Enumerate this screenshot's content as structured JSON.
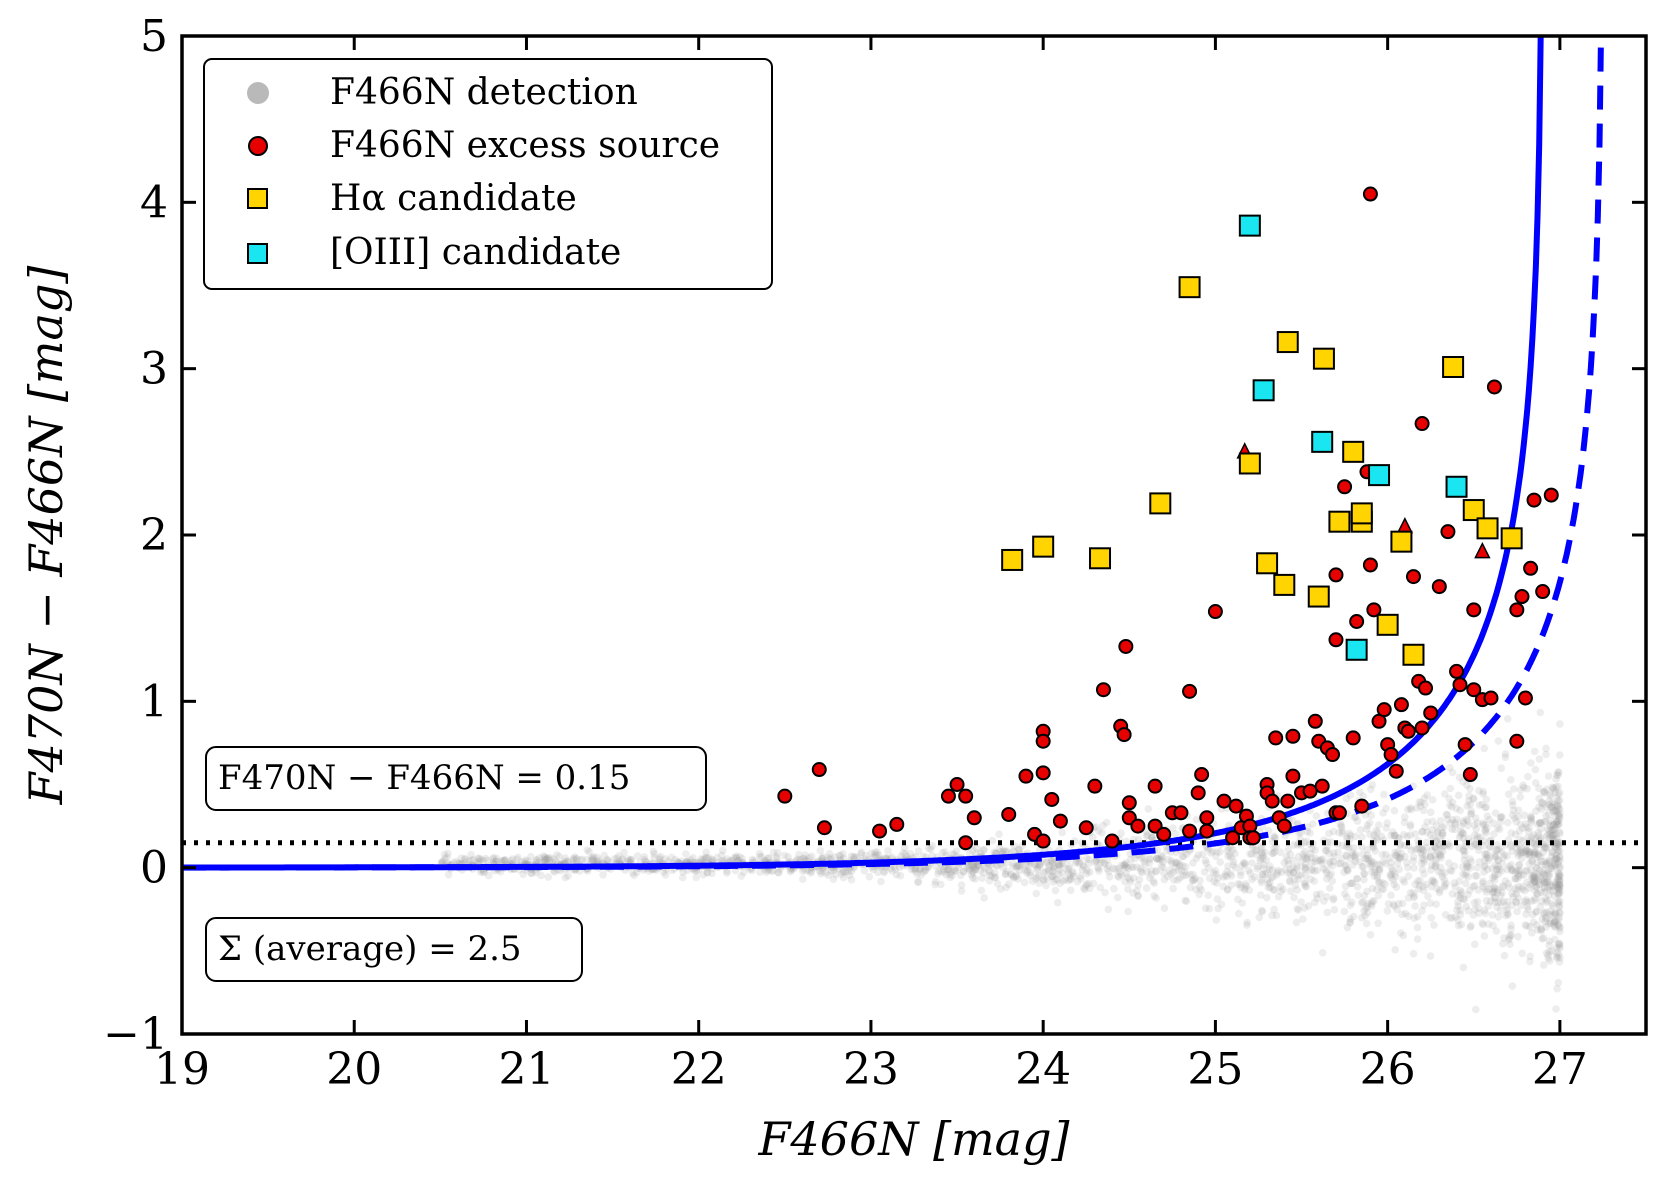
{
  "chart_data": {
    "type": "scatter",
    "xlabel": "F466N [mag]",
    "ylabel": "F470N − F466N [mag]",
    "xlim": [
      19,
      27.5
    ],
    "ylim": [
      -1,
      5
    ],
    "x_ticks": [
      19,
      20,
      21,
      22,
      23,
      24,
      25,
      26,
      27
    ],
    "y_ticks": [
      -1,
      0,
      1,
      2,
      3,
      4,
      5
    ],
    "x_tick_labels": [
      "19",
      "20",
      "21",
      "22",
      "23",
      "24",
      "25",
      "26",
      "27"
    ],
    "y_tick_labels": [
      "−1",
      "0",
      "1",
      "2",
      "3",
      "4",
      "5"
    ],
    "legend": {
      "placement": "top-left",
      "entries": [
        {
          "label": "F466N detection",
          "marker": "circle",
          "color": "#a8a8a8"
        },
        {
          "label": "F466N excess source",
          "marker": "circle",
          "color": "#e60000"
        },
        {
          "label": "Hα candidate",
          "marker": "square",
          "color": "#ffd400"
        },
        {
          "label": "[OIII] candidate",
          "marker": "square",
          "color": "#19e6f0"
        }
      ]
    },
    "annotations": [
      {
        "text": "F470N − F466N = 0.15"
      },
      {
        "text": "Σ (average) = 2.5"
      }
    ],
    "reference_line": {
      "y": 0.15,
      "style": "dotted",
      "color": "#000000"
    },
    "curves": [
      {
        "style": "solid",
        "color": "#0000ff",
        "asymptote_x": 26.9,
        "scale_mag": 24.65
      },
      {
        "style": "dashed",
        "color": "#0000ff",
        "asymptote_x": 27.25,
        "scale_mag": 25.0
      }
    ],
    "series": [
      {
        "name": "F466N excess source",
        "color": "#e60000",
        "points": [
          [
            22.5,
            0.43
          ],
          [
            22.7,
            0.59
          ],
          [
            22.73,
            0.24
          ],
          [
            23.05,
            0.22
          ],
          [
            23.15,
            0.26
          ],
          [
            23.45,
            0.43
          ],
          [
            23.5,
            0.5
          ],
          [
            23.55,
            0.43
          ],
          [
            23.55,
            0.15
          ],
          [
            23.6,
            0.3
          ],
          [
            23.8,
            0.32
          ],
          [
            23.9,
            0.55
          ],
          [
            23.95,
            0.2
          ],
          [
            24.0,
            0.82
          ],
          [
            24.0,
            0.76
          ],
          [
            24.0,
            0.57
          ],
          [
            24.05,
            0.41
          ],
          [
            24.0,
            0.16
          ],
          [
            24.1,
            0.28
          ],
          [
            24.25,
            0.24
          ],
          [
            24.3,
            0.49
          ],
          [
            24.35,
            1.07
          ],
          [
            24.4,
            0.16
          ],
          [
            24.45,
            0.85
          ],
          [
            24.47,
            0.8
          ],
          [
            24.48,
            1.33
          ],
          [
            24.5,
            0.39
          ],
          [
            24.5,
            0.3
          ],
          [
            24.55,
            0.25
          ],
          [
            24.65,
            0.49
          ],
          [
            24.65,
            0.25
          ],
          [
            24.7,
            0.2
          ],
          [
            24.75,
            0.33
          ],
          [
            24.8,
            0.33
          ],
          [
            24.85,
            0.22
          ],
          [
            24.85,
            1.06
          ],
          [
            24.9,
            0.45
          ],
          [
            24.92,
            0.56
          ],
          [
            24.95,
            0.3
          ],
          [
            24.95,
            0.22
          ],
          [
            25.0,
            1.54
          ],
          [
            25.05,
            0.4
          ],
          [
            25.1,
            0.18
          ],
          [
            25.12,
            0.37
          ],
          [
            25.15,
            0.24
          ],
          [
            25.18,
            0.31
          ],
          [
            25.2,
            0.25
          ],
          [
            25.2,
            0.18
          ],
          [
            25.22,
            0.18
          ],
          [
            25.3,
            0.5
          ],
          [
            25.3,
            0.45
          ],
          [
            25.33,
            0.4
          ],
          [
            25.35,
            0.78
          ],
          [
            25.37,
            0.3
          ],
          [
            25.4,
            0.25
          ],
          [
            25.42,
            0.4
          ],
          [
            25.45,
            0.55
          ],
          [
            25.45,
            0.79
          ],
          [
            25.5,
            0.45
          ],
          [
            25.55,
            0.46
          ],
          [
            25.58,
            0.88
          ],
          [
            25.6,
            0.76
          ],
          [
            25.62,
            0.49
          ],
          [
            25.65,
            0.72
          ],
          [
            25.68,
            0.68
          ],
          [
            25.7,
            0.33
          ],
          [
            25.72,
            0.33
          ],
          [
            25.7,
            1.76
          ],
          [
            25.7,
            1.37
          ],
          [
            25.75,
            2.29
          ],
          [
            25.8,
            0.78
          ],
          [
            25.82,
            1.48
          ],
          [
            25.85,
            0.37
          ],
          [
            25.88,
            2.38
          ],
          [
            25.9,
            4.05
          ],
          [
            25.9,
            1.82
          ],
          [
            25.92,
            1.55
          ],
          [
            25.95,
            0.88
          ],
          [
            25.98,
            0.95
          ],
          [
            26.0,
            0.74
          ],
          [
            26.02,
            0.68
          ],
          [
            26.05,
            0.58
          ],
          [
            26.08,
            0.98
          ],
          [
            26.1,
            0.84
          ],
          [
            26.12,
            0.82
          ],
          [
            26.15,
            1.75
          ],
          [
            26.18,
            1.12
          ],
          [
            26.2,
            0.84
          ],
          [
            26.2,
            2.67
          ],
          [
            26.22,
            1.08
          ],
          [
            26.25,
            0.93
          ],
          [
            26.3,
            1.69
          ],
          [
            26.35,
            2.02
          ],
          [
            26.4,
            1.18
          ],
          [
            26.42,
            1.1
          ],
          [
            26.45,
            0.74
          ],
          [
            26.48,
            0.56
          ],
          [
            26.5,
            1.07
          ],
          [
            26.5,
            1.55
          ],
          [
            26.55,
            1.01
          ],
          [
            26.6,
            1.02
          ],
          [
            26.62,
            2.89
          ],
          [
            26.75,
            0.76
          ],
          [
            26.75,
            1.55
          ],
          [
            26.78,
            1.63
          ],
          [
            26.8,
            1.02
          ],
          [
            26.83,
            1.8
          ],
          [
            26.85,
            2.21
          ],
          [
            26.9,
            1.66
          ],
          [
            26.95,
            2.24
          ]
        ]
      },
      {
        "name": "F466N excess source (triangles)",
        "marker": "triangle",
        "color": "#e60000",
        "points": [
          [
            25.17,
            2.5
          ],
          [
            26.1,
            2.05
          ],
          [
            26.55,
            1.9
          ]
        ]
      },
      {
        "name": "Hα candidate",
        "color": "#ffd400",
        "points": [
          [
            23.82,
            1.85
          ],
          [
            24.0,
            1.93
          ],
          [
            24.33,
            1.86
          ],
          [
            24.68,
            2.19
          ],
          [
            24.85,
            3.49
          ],
          [
            25.2,
            2.43
          ],
          [
            25.3,
            1.83
          ],
          [
            25.4,
            1.7
          ],
          [
            25.42,
            3.16
          ],
          [
            25.6,
            1.63
          ],
          [
            25.63,
            3.06
          ],
          [
            25.72,
            2.08
          ],
          [
            25.8,
            2.5
          ],
          [
            25.85,
            2.08
          ],
          [
            25.85,
            2.13
          ],
          [
            26.0,
            1.46
          ],
          [
            26.08,
            1.96
          ],
          [
            26.15,
            1.28
          ],
          [
            26.38,
            3.01
          ],
          [
            26.5,
            2.15
          ],
          [
            26.58,
            2.04
          ],
          [
            26.72,
            1.98
          ]
        ]
      },
      {
        "name": "[OIII] candidate",
        "color": "#19e6f0",
        "points": [
          [
            25.2,
            3.86
          ],
          [
            25.28,
            2.87
          ],
          [
            25.62,
            2.56
          ],
          [
            25.82,
            1.31
          ],
          [
            25.95,
            2.36
          ],
          [
            26.4,
            2.29
          ]
        ]
      }
    ]
  }
}
